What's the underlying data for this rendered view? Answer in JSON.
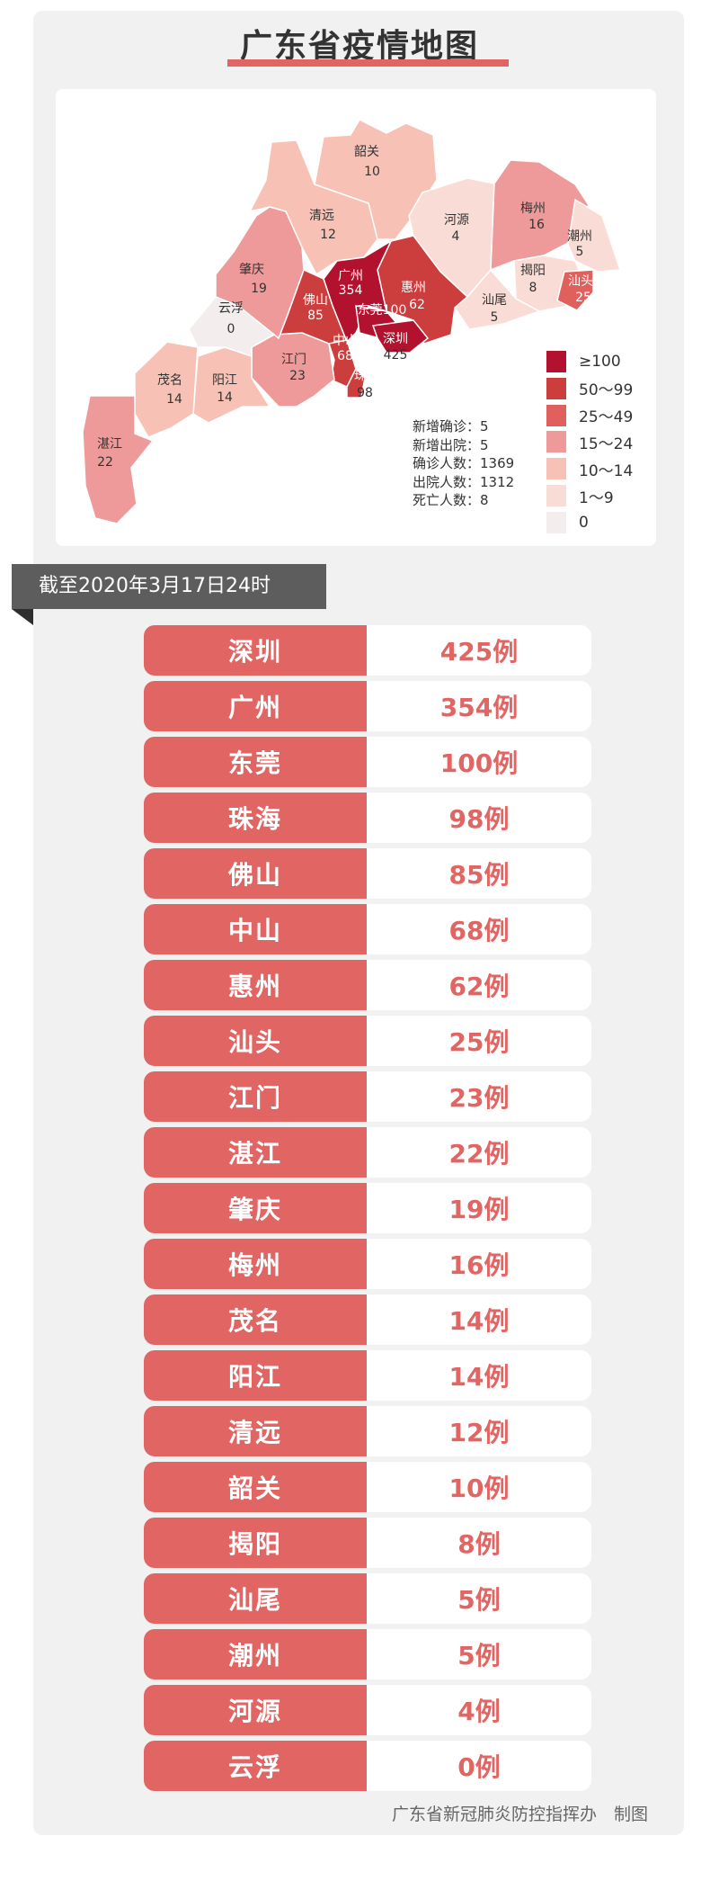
{
  "title": "广东省疫情地图",
  "map": {
    "regions": [
      {
        "name": "韶关",
        "value": "10",
        "color": "#f7c2b5"
      },
      {
        "name": "清远",
        "value": "12",
        "color": "#f7c2b5"
      },
      {
        "name": "河源",
        "value": "4",
        "color": "#fadcd6"
      },
      {
        "name": "梅州",
        "value": "16",
        "color": "#ee9a9a"
      },
      {
        "name": "潮州",
        "value": "5",
        "color": "#fadcd6"
      },
      {
        "name": "揭阳",
        "value": "8",
        "color": "#fadcd6"
      },
      {
        "name": "汕头",
        "value": "25",
        "color": "#e0605e"
      },
      {
        "name": "汕尾",
        "value": "5",
        "color": "#fadcd6"
      },
      {
        "name": "惠州",
        "value": "62",
        "color": "#cc3d3d"
      },
      {
        "name": "广州",
        "value": "354",
        "color": "#b3122e"
      },
      {
        "name": "东莞",
        "value": "100",
        "color": "#b3122e"
      },
      {
        "name": "深圳",
        "value": "425",
        "color": "#b3122e"
      },
      {
        "name": "佛山",
        "value": "85",
        "color": "#cc3d3d"
      },
      {
        "name": "中山",
        "value": "68",
        "color": "#cc3d3d"
      },
      {
        "name": "珠海",
        "value": "98",
        "color": "#cc3d3d"
      },
      {
        "name": "江门",
        "value": "23",
        "color": "#ee9a9a"
      },
      {
        "name": "肇庆",
        "value": "19",
        "color": "#ee9a9a"
      },
      {
        "name": "云浮",
        "value": "0",
        "color": "#f3eded"
      },
      {
        "name": "阳江",
        "value": "14",
        "color": "#f7c2b5"
      },
      {
        "name": "茂名",
        "value": "14",
        "color": "#f7c2b5"
      },
      {
        "name": "湛江",
        "value": "22",
        "color": "#ee9a9a"
      }
    ],
    "stats": [
      "新增确诊：5",
      "新增出院：5",
      "确诊人数：1369",
      "出院人数：1312",
      "死亡人数：8"
    ],
    "legend": [
      {
        "label": "≥100",
        "color": "#b3122e"
      },
      {
        "label": "50～99",
        "color": "#cc3d3d"
      },
      {
        "label": "25～49",
        "color": "#e0605e"
      },
      {
        "label": "15～24",
        "color": "#ee9a9a"
      },
      {
        "label": "10～14",
        "color": "#f7c2b5"
      },
      {
        "label": "1～9",
        "color": "#fadcd6"
      },
      {
        "label": "0",
        "color": "#f3eded"
      }
    ]
  },
  "date_label": "截至2020年3月17日24时",
  "rows": [
    {
      "city": "深圳",
      "count": "425例"
    },
    {
      "city": "广州",
      "count": "354例"
    },
    {
      "city": "东莞",
      "count": "100例"
    },
    {
      "city": "珠海",
      "count": "98例"
    },
    {
      "city": "佛山",
      "count": "85例"
    },
    {
      "city": "中山",
      "count": "68例"
    },
    {
      "city": "惠州",
      "count": "62例"
    },
    {
      "city": "汕头",
      "count": "25例"
    },
    {
      "city": "江门",
      "count": "23例"
    },
    {
      "city": "湛江",
      "count": "22例"
    },
    {
      "city": "肇庆",
      "count": "19例"
    },
    {
      "city": "梅州",
      "count": "16例"
    },
    {
      "city": "茂名",
      "count": "14例"
    },
    {
      "city": "阳江",
      "count": "14例"
    },
    {
      "city": "清远",
      "count": "12例"
    },
    {
      "city": "韶关",
      "count": "10例"
    },
    {
      "city": "揭阳",
      "count": "8例"
    },
    {
      "city": "汕尾",
      "count": "5例"
    },
    {
      "city": "潮州",
      "count": "5例"
    },
    {
      "city": "河源",
      "count": "4例"
    },
    {
      "city": "云浮",
      "count": "0例"
    }
  ],
  "footer": "广东省新冠肺炎防控指挥办　制图",
  "colors": {
    "accent": "#e06563",
    "banner": "#5d5d5d"
  }
}
